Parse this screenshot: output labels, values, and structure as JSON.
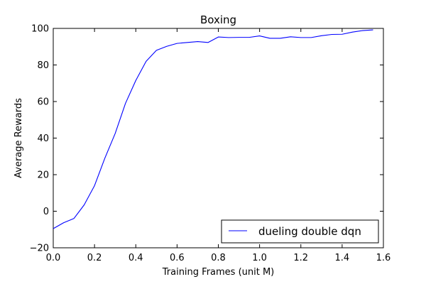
{
  "chart_data": {
    "type": "line",
    "title": "Boxing",
    "xlabel": "Training Frames (unit M)",
    "ylabel": "Average Rewards",
    "xlim": [
      0.0,
      1.6
    ],
    "ylim": [
      -20,
      100
    ],
    "xticks": [
      "0.0",
      "0.2",
      "0.4",
      "0.6",
      "0.8",
      "1.0",
      "1.2",
      "1.4",
      "1.6"
    ],
    "yticks": [
      "−20",
      "0",
      "20",
      "40",
      "60",
      "80",
      "100"
    ],
    "legend_position": "bottom-right",
    "grid": false,
    "series": [
      {
        "name": "dueling double dqn",
        "color": "#0000ff",
        "x": [
          0.0,
          0.05,
          0.1,
          0.15,
          0.2,
          0.25,
          0.3,
          0.35,
          0.4,
          0.45,
          0.5,
          0.55,
          0.6,
          0.65,
          0.7,
          0.75,
          0.8,
          0.85,
          0.9,
          0.95,
          1.0,
          1.05,
          1.1,
          1.15,
          1.2,
          1.25,
          1.3,
          1.35,
          1.4,
          1.45,
          1.5,
          1.55
        ],
        "y": [
          -9.5,
          -6.3,
          -4.0,
          3.5,
          14.0,
          29.0,
          42.5,
          59.0,
          71.5,
          82.0,
          88.0,
          90.2,
          91.8,
          92.3,
          92.8,
          92.3,
          95.3,
          95.0,
          95.1,
          95.1,
          95.9,
          94.6,
          94.6,
          95.4,
          95.0,
          95.0,
          96.0,
          96.7,
          96.8,
          98.0,
          98.8,
          99.2
        ]
      }
    ]
  }
}
